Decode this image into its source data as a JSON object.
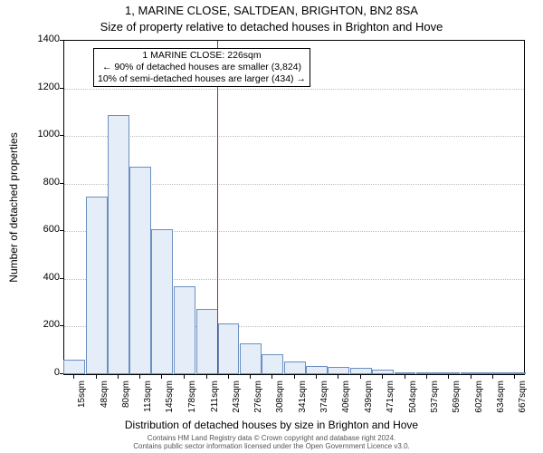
{
  "title_line1": "1, MARINE CLOSE, SALTDEAN, BRIGHTON, BN2 8SA",
  "title_line2": "Size of property relative to detached houses in Brighton and Hove",
  "ylabel": "Number of detached properties",
  "xlabel": "Distribution of detached houses by size in Brighton and Hove",
  "chart": {
    "type": "histogram",
    "background_color": "#ffffff",
    "grid_color": "#bdbdbd",
    "axis_color": "#000000",
    "bar_fill": "#e4edf8",
    "bar_border": "#6a8fc0",
    "marker_color": "#d7191c",
    "marker_x": 226,
    "ylim": [
      0,
      1400
    ],
    "ytick_step": 200,
    "yticks": [
      0,
      200,
      400,
      600,
      800,
      1000,
      1200,
      1400
    ],
    "xlim": [
      0,
      680
    ],
    "xticks": [
      15,
      48,
      80,
      113,
      145,
      178,
      211,
      243,
      276,
      308,
      341,
      374,
      406,
      439,
      471,
      504,
      537,
      569,
      602,
      634,
      667
    ],
    "xtick_suffix": "sqm",
    "bin_width": 32,
    "bars": [
      {
        "x": 15,
        "count": 60
      },
      {
        "x": 48,
        "count": 745
      },
      {
        "x": 80,
        "count": 1090
      },
      {
        "x": 113,
        "count": 870
      },
      {
        "x": 145,
        "count": 610
      },
      {
        "x": 178,
        "count": 370
      },
      {
        "x": 211,
        "count": 275
      },
      {
        "x": 243,
        "count": 215
      },
      {
        "x": 276,
        "count": 130
      },
      {
        "x": 308,
        "count": 85
      },
      {
        "x": 341,
        "count": 55
      },
      {
        "x": 374,
        "count": 35
      },
      {
        "x": 406,
        "count": 30
      },
      {
        "x": 439,
        "count": 25
      },
      {
        "x": 471,
        "count": 18
      },
      {
        "x": 504,
        "count": 5
      },
      {
        "x": 537,
        "count": 5
      },
      {
        "x": 569,
        "count": 2
      },
      {
        "x": 602,
        "count": 5
      },
      {
        "x": 634,
        "count": 2
      },
      {
        "x": 667,
        "count": 5
      }
    ],
    "annotation": {
      "line1": "1 MARINE CLOSE: 226sqm",
      "line2": "← 90% of detached houses are smaller (3,824)",
      "line3": "10% of semi-detached houses are larger (434) →"
    },
    "label_fontsize": 12,
    "tick_fontsize": 11,
    "title_fontsize": 13
  },
  "footer": {
    "line1": "Contains HM Land Registry data © Crown copyright and database right 2024.",
    "line2": "Contains public sector information licensed under the Open Government Licence v3.0."
  }
}
